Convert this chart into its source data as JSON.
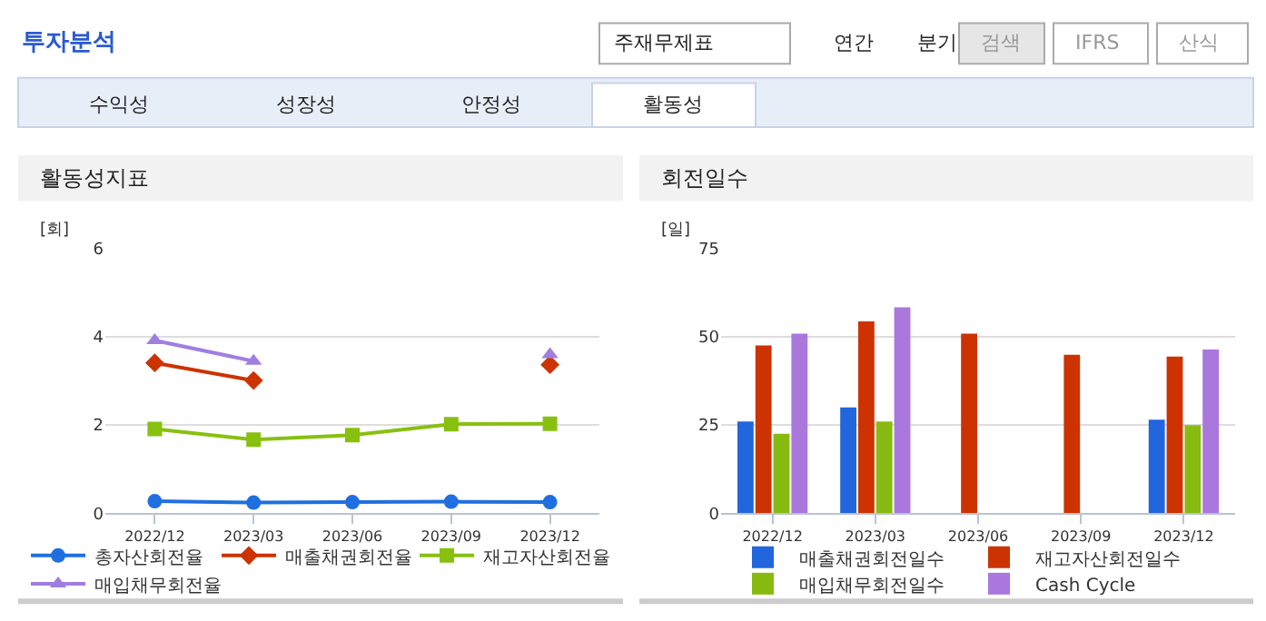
{
  "chart_data": [
    {
      "type": "other",
      "title": "투자분석",
      "annotations": [
        "주재무제표",
        "연간",
        "분기",
        "검색",
        "IFRS",
        "산식",
        "수익성",
        "성장성",
        "안정성",
        "활동성"
      ]
    },
    {
      "type": "line",
      "title": "활동성지표",
      "ylabel": "[회]",
      "categories": [
        "2022/12",
        "2023/03",
        "2023/06",
        "2023/09",
        "2023/12"
      ],
      "ylim": [
        0,
        6
      ],
      "yticks": [
        0,
        2,
        4,
        6
      ],
      "grid": "y",
      "legend": "bottom",
      "series": [
        {
          "name": "총자산회전율",
          "color": "#1f6fe0",
          "marker": "circle",
          "values": [
            0.27,
            0.24,
            0.25,
            0.26,
            0.25
          ]
        },
        {
          "name": "매출채권회전율",
          "color": "#cc3300",
          "marker": "diamond",
          "values": [
            3.41,
            3.01,
            null,
            null,
            3.37
          ]
        },
        {
          "name": "재고자산회전율",
          "color": "#88c010",
          "marker": "square",
          "values": [
            1.91,
            1.67,
            1.77,
            2.02,
            2.03
          ]
        },
        {
          "name": "매입채무회전율",
          "color": "#a07ee0",
          "marker": "triangle",
          "values": [
            3.92,
            3.45,
            null,
            null,
            3.6
          ]
        }
      ]
    },
    {
      "type": "bar",
      "title": "회전일수",
      "ylabel": "[일]",
      "categories": [
        "2022/12",
        "2023/03",
        "2023/06",
        "2023/09",
        "2023/12"
      ],
      "ylim": [
        0,
        75
      ],
      "yticks": [
        0,
        25,
        50,
        75
      ],
      "grid": "y",
      "legend": "bottom",
      "series": [
        {
          "name": "매출채권회전일수",
          "color": "#2266dd",
          "values": [
            26,
            30,
            null,
            null,
            26.5
          ]
        },
        {
          "name": "재고자산회전일수",
          "color": "#cc3300",
          "values": [
            47.6,
            54.4,
            50.9,
            44.9,
            44.4
          ]
        },
        {
          "name": "매입채무회전일수",
          "color": "#88bb11",
          "values": [
            22.5,
            26,
            null,
            null,
            25
          ]
        },
        {
          "name": "Cash Cycle",
          "color": "#aa77dd",
          "values": [
            50.9,
            58.4,
            null,
            null,
            46.4
          ]
        }
      ]
    }
  ]
}
